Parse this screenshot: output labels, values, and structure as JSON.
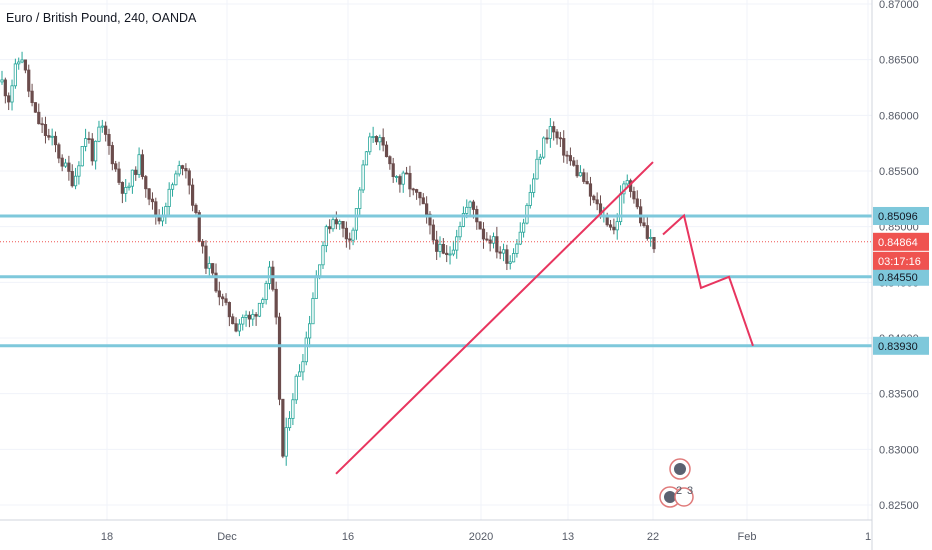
{
  "chart_data": {
    "type": "candlestick",
    "title": "Euro / British Pound, 240, OANDA",
    "x_ticks": [
      "18",
      "Dec",
      "16",
      "2020",
      "13",
      "22",
      "Feb",
      "1"
    ],
    "y_ticks": [
      "0.87000",
      "0.86500",
      "0.86000",
      "0.85500",
      "0.85000",
      "0.84500",
      "0.84000",
      "0.83500",
      "0.83000",
      "0.82500"
    ],
    "ylim": [
      0.8245,
      0.8705
    ],
    "current_price": "0.84864",
    "countdown": "03:17:16",
    "levels": [
      {
        "label": "0.85096",
        "value": 0.85096
      },
      {
        "label": "0.84550",
        "value": 0.8455
      },
      {
        "label": "0.83930",
        "value": 0.8393
      }
    ],
    "trendline": {
      "from": {
        "x": "Dec 16",
        "y": 0.8278
      },
      "to": {
        "x": "Jan 22",
        "y": 0.8558
      }
    },
    "projection": [
      0.8493,
      0.851,
      0.8445,
      0.8455,
      0.8393
    ],
    "price_path": [
      0.863,
      0.8615,
      0.864,
      0.8655,
      0.8625,
      0.86,
      0.859,
      0.858,
      0.8575,
      0.856,
      0.855,
      0.854,
      0.8565,
      0.8585,
      0.856,
      0.859,
      0.858,
      0.856,
      0.854,
      0.853,
      0.8545,
      0.856,
      0.854,
      0.852,
      0.8505,
      0.852,
      0.8535,
      0.855,
      0.856,
      0.853,
      0.85,
      0.847,
      0.846,
      0.8445,
      0.843,
      0.842,
      0.841,
      0.842,
      0.8415,
      0.8425,
      0.844,
      0.846,
      0.842,
      0.829,
      0.833,
      0.836,
      0.838,
      0.841,
      0.845,
      0.848,
      0.85,
      0.851,
      0.85,
      0.849,
      0.85,
      0.854,
      0.857,
      0.8585,
      0.8575,
      0.856,
      0.855,
      0.854,
      0.8545,
      0.853,
      0.8525,
      0.851,
      0.849,
      0.848,
      0.847,
      0.848,
      0.85,
      0.8515,
      0.852,
      0.8505,
      0.849,
      0.849,
      0.848,
      0.8475,
      0.847,
      0.849,
      0.8505,
      0.853,
      0.8555,
      0.8575,
      0.859,
      0.858,
      0.857,
      0.856,
      0.855,
      0.8545,
      0.853,
      0.852,
      0.851,
      0.8505,
      0.8495,
      0.853,
      0.8545,
      0.8525,
      0.8505,
      0.849,
      0.8485
    ]
  },
  "icons": {
    "markers": [
      "earnings-marker-icon",
      "earnings-marker-icon"
    ]
  },
  "event_badges": [
    "2",
    "3"
  ],
  "colors": {
    "up": "#26a69a",
    "down": "#ef5350",
    "candle": "#6b4c4c",
    "level_line": "#7ec8db",
    "trend": "#e8355f",
    "current": "#ef5350"
  }
}
